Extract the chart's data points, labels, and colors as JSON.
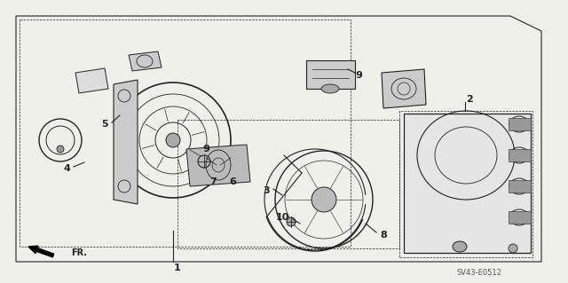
{
  "bg_color": "#f0f0eb",
  "diagram_color": "#222222",
  "diagram_code": "SV43-E0512",
  "fr_label": "FR."
}
